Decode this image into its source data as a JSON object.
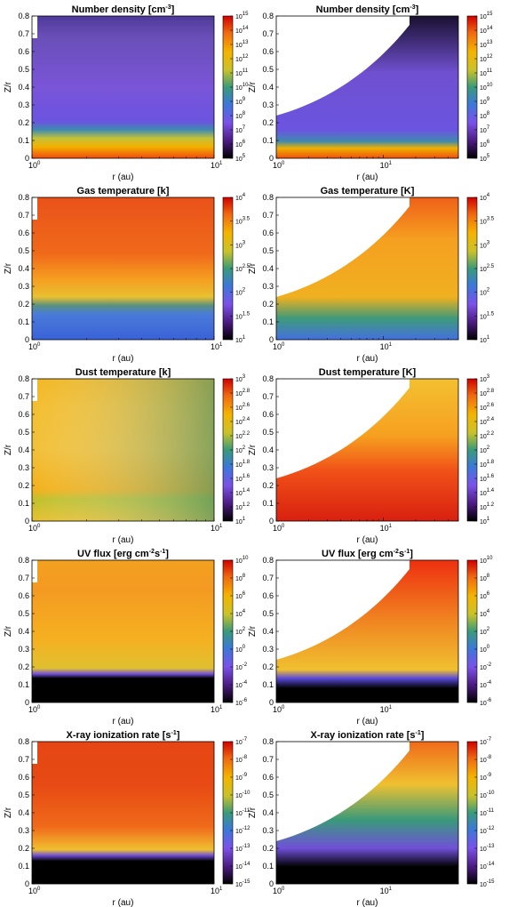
{
  "chart_data": [
    {
      "type": "heatmap",
      "title": "Number density [cm",
      "title_sup": "-3",
      "title_suffix": "]",
      "xlabel": "r (au)",
      "ylabel": "Z/r",
      "xscale": "log",
      "xlim": [
        1,
        10
      ],
      "ylim": [
        0,
        0.8
      ],
      "yticks": [
        "0",
        "0.1",
        "0.2",
        "0.3",
        "0.4",
        "0.5",
        "0.6",
        "0.7",
        "0.8"
      ],
      "xticks": [
        {
          "base": "10",
          "exp": "0"
        },
        {
          "base": "10",
          "exp": "1"
        }
      ],
      "colorbar": {
        "scale": "log",
        "range": [
          5,
          15
        ],
        "ticks": [
          {
            "base": "10",
            "exp": "15"
          },
          {
            "base": "10",
            "exp": "14"
          },
          {
            "base": "10",
            "exp": "13"
          },
          {
            "base": "10",
            "exp": "12"
          },
          {
            "base": "10",
            "exp": "11"
          },
          {
            "base": "10",
            "exp": "10"
          },
          {
            "base": "10",
            "exp": "9"
          },
          {
            "base": "10",
            "exp": "8"
          },
          {
            "base": "10",
            "exp": "7"
          },
          {
            "base": "10",
            "exp": "6"
          },
          {
            "base": "10",
            "exp": "5"
          }
        ]
      },
      "field": "density"
    },
    {
      "type": "heatmap",
      "title": "Number density [cm",
      "title_sup": "-3",
      "title_suffix": "]",
      "xlabel": "r (au)",
      "ylabel": "Z/r",
      "xscale": "log",
      "xlim": [
        1,
        50
      ],
      "ylim": [
        0,
        0.8
      ],
      "yticks": [
        "0",
        "0.1",
        "0.2",
        "0.3",
        "0.4",
        "0.5",
        "0.6",
        "0.7",
        "0.8"
      ],
      "xticks": [
        {
          "base": "10",
          "exp": "0"
        },
        {
          "base": "10",
          "exp": "1"
        }
      ],
      "colorbar": {
        "scale": "log",
        "range": [
          5,
          15
        ],
        "ticks": [
          {
            "base": "10",
            "exp": "15"
          },
          {
            "base": "10",
            "exp": "14"
          },
          {
            "base": "10",
            "exp": "13"
          },
          {
            "base": "10",
            "exp": "12"
          },
          {
            "base": "10",
            "exp": "11"
          },
          {
            "base": "10",
            "exp": "10"
          },
          {
            "base": "10",
            "exp": "9"
          },
          {
            "base": "10",
            "exp": "8"
          },
          {
            "base": "10",
            "exp": "7"
          },
          {
            "base": "10",
            "exp": "6"
          },
          {
            "base": "10",
            "exp": "5"
          }
        ]
      },
      "field": "density"
    },
    {
      "type": "heatmap",
      "title": "Gas temperature [k]",
      "title_sup": "",
      "title_suffix": "",
      "xlabel": "r (au)",
      "ylabel": "Z/r",
      "xscale": "log",
      "xlim": [
        1,
        10
      ],
      "ylim": [
        0,
        0.8
      ],
      "yticks": [
        "0",
        "0.1",
        "0.2",
        "0.3",
        "0.4",
        "0.5",
        "0.6",
        "0.7",
        "0.8"
      ],
      "xticks": [
        {
          "base": "10",
          "exp": "0"
        },
        {
          "base": "10",
          "exp": "1"
        }
      ],
      "colorbar": {
        "scale": "log",
        "range": [
          1,
          4
        ],
        "ticks": [
          {
            "base": "10",
            "exp": "4"
          },
          {
            "base": "10",
            "exp": "3.5"
          },
          {
            "base": "10",
            "exp": "3"
          },
          {
            "base": "10",
            "exp": "2.5"
          },
          {
            "base": "10",
            "exp": "2"
          },
          {
            "base": "10",
            "exp": "1.5"
          },
          {
            "base": "10",
            "exp": "1"
          }
        ]
      },
      "field": "gastemp"
    },
    {
      "type": "heatmap",
      "title": "Gas temperature [K]",
      "title_sup": "",
      "title_suffix": "",
      "xlabel": "r (au)",
      "ylabel": "Z/r",
      "xscale": "log",
      "xlim": [
        1,
        50
      ],
      "ylim": [
        0,
        0.8
      ],
      "yticks": [
        "0",
        "0.1",
        "0.2",
        "0.3",
        "0.4",
        "0.5",
        "0.6",
        "0.7",
        "0.8"
      ],
      "xticks": [
        {
          "base": "10",
          "exp": "0"
        },
        {
          "base": "10",
          "exp": "1"
        }
      ],
      "colorbar": {
        "scale": "log",
        "range": [
          1,
          4
        ],
        "ticks": [
          {
            "base": "10",
            "exp": "4"
          },
          {
            "base": "10",
            "exp": "3.5"
          },
          {
            "base": "10",
            "exp": "3"
          },
          {
            "base": "10",
            "exp": "2.5"
          },
          {
            "base": "10",
            "exp": "2"
          },
          {
            "base": "10",
            "exp": "1.5"
          },
          {
            "base": "10",
            "exp": "1"
          }
        ]
      },
      "field": "gastemp"
    },
    {
      "type": "heatmap",
      "title": "Dust temperature [k]",
      "title_sup": "",
      "title_suffix": "",
      "xlabel": "r (au)",
      "ylabel": "Z/r",
      "xscale": "log",
      "xlim": [
        1,
        10
      ],
      "ylim": [
        0,
        0.8
      ],
      "yticks": [
        "0",
        "0.1",
        "0.2",
        "0.3",
        "0.4",
        "0.5",
        "0.6",
        "0.7",
        "0.8"
      ],
      "xticks": [
        {
          "base": "10",
          "exp": "0"
        },
        {
          "base": "10",
          "exp": "1"
        }
      ],
      "colorbar": {
        "scale": "log",
        "range": [
          1,
          3
        ],
        "ticks": [
          {
            "base": "10",
            "exp": "3"
          },
          {
            "base": "10",
            "exp": "2.8"
          },
          {
            "base": "10",
            "exp": "2.6"
          },
          {
            "base": "10",
            "exp": "2.4"
          },
          {
            "base": "10",
            "exp": "2.2"
          },
          {
            "base": "10",
            "exp": "2"
          },
          {
            "base": "10",
            "exp": "1.8"
          },
          {
            "base": "10",
            "exp": "1.6"
          },
          {
            "base": "10",
            "exp": "1.4"
          },
          {
            "base": "10",
            "exp": "1.2"
          },
          {
            "base": "10",
            "exp": "1"
          }
        ]
      },
      "field": "dusttemp"
    },
    {
      "type": "heatmap",
      "title": "Dust temperature [K]",
      "title_sup": "",
      "title_suffix": "",
      "xlabel": "r (au)",
      "ylabel": "Z/r",
      "xscale": "log",
      "xlim": [
        1,
        50
      ],
      "ylim": [
        0,
        0.8
      ],
      "yticks": [
        "0",
        "0.1",
        "0.2",
        "0.3",
        "0.4",
        "0.5",
        "0.6",
        "0.7",
        "0.8"
      ],
      "xticks": [
        {
          "base": "10",
          "exp": "0"
        },
        {
          "base": "10",
          "exp": "1"
        }
      ],
      "colorbar": {
        "scale": "log",
        "range": [
          1,
          3
        ],
        "ticks": [
          {
            "base": "10",
            "exp": "3"
          },
          {
            "base": "10",
            "exp": "2.8"
          },
          {
            "base": "10",
            "exp": "2.6"
          },
          {
            "base": "10",
            "exp": "2.4"
          },
          {
            "base": "10",
            "exp": "2.2"
          },
          {
            "base": "10",
            "exp": "2"
          },
          {
            "base": "10",
            "exp": "1.8"
          },
          {
            "base": "10",
            "exp": "1.6"
          },
          {
            "base": "10",
            "exp": "1.4"
          },
          {
            "base": "10",
            "exp": "1.2"
          },
          {
            "base": "10",
            "exp": "1"
          }
        ]
      },
      "field": "dusttemp"
    },
    {
      "type": "heatmap",
      "title": "UV flux [erg cm",
      "title_sup": "-2",
      "title_mid": "s",
      "title_sup2": "-1",
      "title_suffix": "]",
      "xlabel": "r (au)",
      "ylabel": "Z/r",
      "xscale": "log",
      "xlim": [
        1,
        10
      ],
      "ylim": [
        0,
        0.8
      ],
      "yticks": [
        "0",
        "0.1",
        "0.2",
        "0.3",
        "0.4",
        "0.5",
        "0.6",
        "0.7",
        "0.8"
      ],
      "xticks": [
        {
          "base": "10",
          "exp": "0"
        },
        {
          "base": "10",
          "exp": "1"
        }
      ],
      "colorbar": {
        "scale": "log",
        "range": [
          -6,
          10
        ],
        "ticks": [
          {
            "base": "10",
            "exp": "10"
          },
          {
            "base": "10",
            "exp": "8"
          },
          {
            "base": "10",
            "exp": "6"
          },
          {
            "base": "10",
            "exp": "4"
          },
          {
            "base": "10",
            "exp": "2"
          },
          {
            "base": "10",
            "exp": "0"
          },
          {
            "base": "10",
            "exp": "-2"
          },
          {
            "base": "10",
            "exp": "-4"
          },
          {
            "base": "10",
            "exp": "-6"
          }
        ]
      },
      "field": "uv"
    },
    {
      "type": "heatmap",
      "title": "UV flux [erg cm",
      "title_sup": "-2",
      "title_mid": "s",
      "title_sup2": "-1",
      "title_suffix": "]",
      "xlabel": "r (au)",
      "ylabel": "Z/r",
      "xscale": "log",
      "xlim": [
        1,
        50
      ],
      "ylim": [
        0,
        0.8
      ],
      "yticks": [
        "0",
        "0.1",
        "0.2",
        "0.3",
        "0.4",
        "0.5",
        "0.6",
        "0.7",
        "0.8"
      ],
      "xticks": [
        {
          "base": "10",
          "exp": "0"
        },
        {
          "base": "10",
          "exp": "1"
        }
      ],
      "colorbar": {
        "scale": "log",
        "range": [
          -6,
          10
        ],
        "ticks": [
          {
            "base": "10",
            "exp": "10"
          },
          {
            "base": "10",
            "exp": "8"
          },
          {
            "base": "10",
            "exp": "6"
          },
          {
            "base": "10",
            "exp": "4"
          },
          {
            "base": "10",
            "exp": "2"
          },
          {
            "base": "10",
            "exp": "0"
          },
          {
            "base": "10",
            "exp": "-2"
          },
          {
            "base": "10",
            "exp": "-4"
          },
          {
            "base": "10",
            "exp": "-6"
          }
        ]
      },
      "field": "uv"
    },
    {
      "type": "heatmap",
      "title": "X-ray ionization rate [s",
      "title_sup": "-1",
      "title_suffix": "]",
      "xlabel": "r (au)",
      "ylabel": "Z/r",
      "xscale": "log",
      "xlim": [
        1,
        10
      ],
      "ylim": [
        0,
        0.8
      ],
      "yticks": [
        "0",
        "0.1",
        "0.2",
        "0.3",
        "0.4",
        "0.5",
        "0.6",
        "0.7",
        "0.8"
      ],
      "xticks": [
        {
          "base": "10",
          "exp": "0"
        },
        {
          "base": "10",
          "exp": "1"
        }
      ],
      "colorbar": {
        "scale": "log",
        "range": [
          -15,
          -7
        ],
        "ticks": [
          {
            "base": "10",
            "exp": "-7"
          },
          {
            "base": "10",
            "exp": "-8"
          },
          {
            "base": "10",
            "exp": "-9"
          },
          {
            "base": "10",
            "exp": "-10"
          },
          {
            "base": "10",
            "exp": "-11"
          },
          {
            "base": "10",
            "exp": "-12"
          },
          {
            "base": "10",
            "exp": "-13"
          },
          {
            "base": "10",
            "exp": "-14"
          },
          {
            "base": "10",
            "exp": "-15"
          }
        ]
      },
      "field": "xray"
    },
    {
      "type": "heatmap",
      "title": "X-ray ionization rate [s",
      "title_sup": "-1",
      "title_suffix": "]",
      "xlabel": "r (au)",
      "ylabel": "Z/r",
      "xscale": "log",
      "xlim": [
        1,
        50
      ],
      "ylim": [
        0,
        0.8
      ],
      "yticks": [
        "0",
        "0.1",
        "0.2",
        "0.3",
        "0.4",
        "0.5",
        "0.6",
        "0.7",
        "0.8"
      ],
      "xticks": [
        {
          "base": "10",
          "exp": "0"
        },
        {
          "base": "10",
          "exp": "1"
        }
      ],
      "colorbar": {
        "scale": "log",
        "range": [
          -15,
          -7
        ],
        "ticks": [
          {
            "base": "10",
            "exp": "-7"
          },
          {
            "base": "10",
            "exp": "-8"
          },
          {
            "base": "10",
            "exp": "-9"
          },
          {
            "base": "10",
            "exp": "-10"
          },
          {
            "base": "10",
            "exp": "-11"
          },
          {
            "base": "10",
            "exp": "-12"
          },
          {
            "base": "10",
            "exp": "-13"
          },
          {
            "base": "10",
            "exp": "-14"
          },
          {
            "base": "10",
            "exp": "-15"
          }
        ]
      },
      "field": "xray"
    }
  ]
}
